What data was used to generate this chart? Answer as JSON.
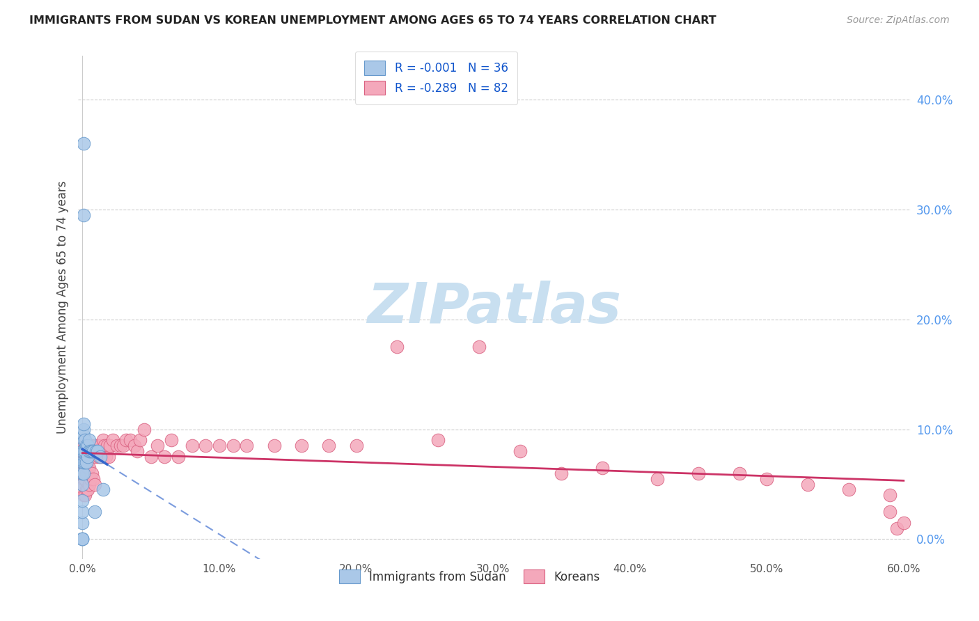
{
  "title": "IMMIGRANTS FROM SUDAN VS KOREAN UNEMPLOYMENT AMONG AGES 65 TO 74 YEARS CORRELATION CHART",
  "source": "Source: ZipAtlas.com",
  "ylabel": "Unemployment Among Ages 65 to 74 years",
  "sudan_color": "#aac8e8",
  "sudan_edge": "#6699cc",
  "korean_color": "#f4a8bb",
  "korean_edge": "#d96080",
  "trend_sudan_color": "#3366cc",
  "trend_korean_color": "#cc3366",
  "grid_color": "#cccccc",
  "background_color": "#ffffff",
  "watermark_color": "#c8dff0",
  "xlim": [
    -0.003,
    0.605
  ],
  "ylim": [
    -0.018,
    0.44
  ],
  "ytick_right_vals": [
    0.0,
    0.1,
    0.2,
    0.3,
    0.4
  ],
  "xtick_vals": [
    0.0,
    0.1,
    0.2,
    0.3,
    0.4,
    0.5,
    0.6
  ],
  "sudan_x": [
    0.0,
    0.0,
    0.0,
    0.0,
    0.0,
    0.0,
    0.0,
    0.0,
    0.0,
    0.0,
    0.001,
    0.001,
    0.001,
    0.001,
    0.001,
    0.001,
    0.001,
    0.002,
    0.002,
    0.002,
    0.003,
    0.003,
    0.004,
    0.004,
    0.005,
    0.005,
    0.006,
    0.007,
    0.008,
    0.009,
    0.01,
    0.011,
    0.013,
    0.015,
    0.001,
    0.001
  ],
  "sudan_y": [
    0.0,
    0.0,
    0.0,
    0.015,
    0.025,
    0.035,
    0.05,
    0.06,
    0.07,
    0.08,
    0.06,
    0.07,
    0.08,
    0.09,
    0.095,
    0.1,
    0.105,
    0.07,
    0.08,
    0.09,
    0.07,
    0.085,
    0.075,
    0.085,
    0.08,
    0.09,
    0.08,
    0.08,
    0.08,
    0.025,
    0.08,
    0.08,
    0.075,
    0.045,
    0.36,
    0.295
  ],
  "korean_x": [
    0.0,
    0.0,
    0.0,
    0.001,
    0.001,
    0.001,
    0.001,
    0.001,
    0.002,
    0.002,
    0.002,
    0.002,
    0.003,
    0.003,
    0.003,
    0.004,
    0.004,
    0.004,
    0.005,
    0.005,
    0.005,
    0.006,
    0.006,
    0.007,
    0.007,
    0.008,
    0.008,
    0.009,
    0.009,
    0.01,
    0.011,
    0.012,
    0.013,
    0.014,
    0.015,
    0.016,
    0.017,
    0.018,
    0.019,
    0.02,
    0.022,
    0.025,
    0.028,
    0.03,
    0.032,
    0.035,
    0.038,
    0.04,
    0.042,
    0.045,
    0.05,
    0.055,
    0.06,
    0.065,
    0.07,
    0.08,
    0.09,
    0.1,
    0.11,
    0.12,
    0.14,
    0.16,
    0.18,
    0.2,
    0.23,
    0.26,
    0.29,
    0.32,
    0.35,
    0.38,
    0.42,
    0.45,
    0.48,
    0.5,
    0.53,
    0.56,
    0.59,
    0.59,
    0.595,
    0.6
  ],
  "korean_y": [
    0.05,
    0.065,
    0.075,
    0.04,
    0.055,
    0.065,
    0.075,
    0.085,
    0.04,
    0.055,
    0.07,
    0.085,
    0.045,
    0.06,
    0.085,
    0.045,
    0.065,
    0.085,
    0.05,
    0.065,
    0.085,
    0.055,
    0.08,
    0.06,
    0.085,
    0.055,
    0.08,
    0.05,
    0.085,
    0.075,
    0.085,
    0.075,
    0.085,
    0.075,
    0.09,
    0.085,
    0.075,
    0.085,
    0.075,
    0.085,
    0.09,
    0.085,
    0.085,
    0.085,
    0.09,
    0.09,
    0.085,
    0.08,
    0.09,
    0.1,
    0.075,
    0.085,
    0.075,
    0.09,
    0.075,
    0.085,
    0.085,
    0.085,
    0.085,
    0.085,
    0.085,
    0.085,
    0.085,
    0.085,
    0.175,
    0.09,
    0.175,
    0.08,
    0.06,
    0.065,
    0.055,
    0.06,
    0.06,
    0.055,
    0.05,
    0.045,
    0.04,
    0.025,
    0.01,
    0.015
  ]
}
